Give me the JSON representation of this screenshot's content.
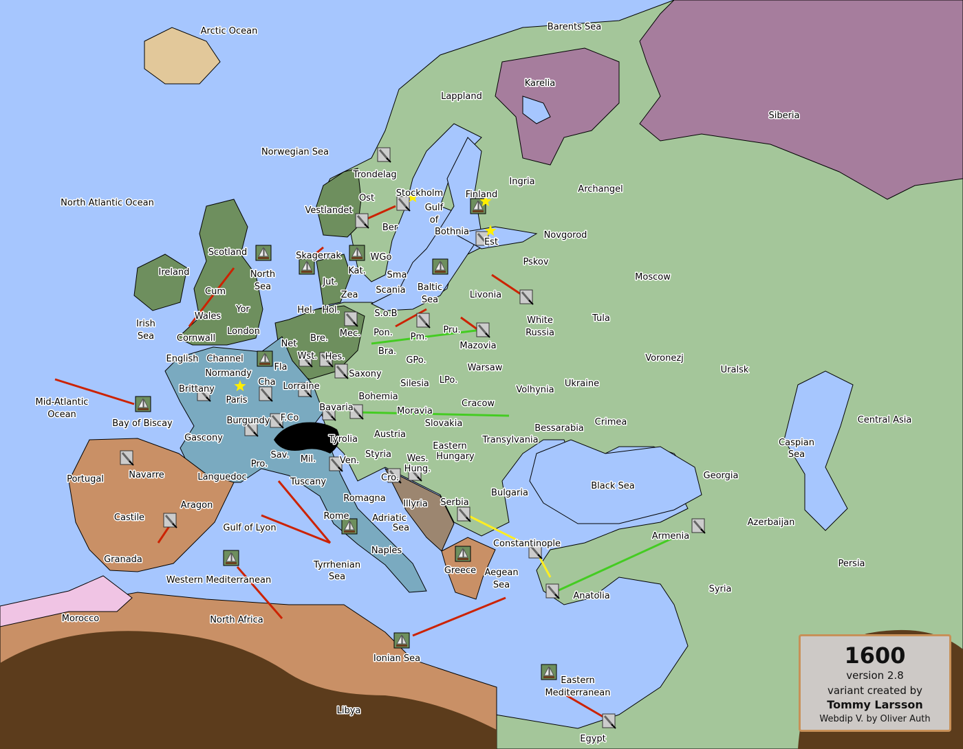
{
  "colors": {
    "sea": "#a6c6fe",
    "neutral_land": "#a4c69a",
    "dark_green": "#6e8f5e",
    "purple": "#a67d9d",
    "blue": "#7aaac0",
    "tan": "#c99066",
    "pink": "#f0c4e4",
    "desert": "#5c3c1c",
    "order_red": "#cc2200",
    "order_green": "#44cc22",
    "order_yellow": "#ffee22"
  },
  "regions": [
    "Arctic Ocean",
    "Barents Sea",
    "Karelia",
    "Siberia",
    "Lappland",
    "Norwegian Sea",
    "North Atlantic Ocean",
    "Trondelag",
    "Ost",
    "Stockholm",
    "Finland",
    "Ingria",
    "Archangel",
    "Vestlandet",
    "Gulf",
    "of",
    "Bothnia",
    "Ber",
    "Est",
    "Novgorod",
    "Scotland",
    "Skagerrak",
    "WGo",
    "North",
    "Sea",
    "Ireland",
    "Kat.",
    "Sma",
    "Pskov",
    "Moscow",
    "Cum",
    "Yor",
    "Jut.",
    "Zea",
    "Scania",
    "Baltic",
    "Sea",
    "Livonia",
    "Irish",
    "Sea",
    "Wales",
    "Hel.",
    "Hol.",
    "S.o.B",
    "White",
    "Russia",
    "Tula",
    "Cornwall",
    "London",
    "Mec.",
    "Pon.",
    "Pru.",
    "Pm.",
    "Mazovia",
    "Bre.",
    "Net",
    "English",
    "Channel",
    "Fla",
    "Wst.",
    "Hes.",
    "Bra.",
    "GPo.",
    "Warsaw",
    "Voronezj",
    "Uralsk",
    "Normandy",
    "Saxony",
    "Silesia",
    "LPo.",
    "Volhynia",
    "Ukraine",
    "Cha",
    "Lorraine",
    "Brittany",
    "Paris",
    "Bohemia",
    "Cracow",
    "Mid-Atlantic",
    "Ocean",
    "Moravia",
    "Bavaria",
    "Bay of Biscay",
    "Burgundy",
    "F.Co",
    "Slovakia",
    "Crimea",
    "Bessarabia",
    "Central Asia",
    "Gascony",
    "Tyrolia",
    "Austria",
    "Transylvania",
    "Eastern",
    "Hungary",
    "Caspian",
    "Sea",
    "Navarre",
    "Sav.",
    "Mil.",
    "Styria",
    "Wes.",
    "Hung.",
    "Pro.",
    "Ven.",
    "Portugal",
    "Languedoc",
    "Tuscany",
    "Cro.",
    "Georgia",
    "Black Sea",
    "Bulgaria",
    "Romagna",
    "Illyria",
    "Serbia",
    "Aragon",
    "Rome",
    "Adriatic",
    "Sea",
    "Castile",
    "Gulf of Lyon",
    "Azerbaijan",
    "Armenia",
    "Constantinople",
    "Naples",
    "Granada",
    "Tyrrhenian",
    "Sea",
    "Greece",
    "Aegean",
    "Sea",
    "Persia",
    "Syria",
    "Anatolia",
    "Western Mediterranean",
    "Morocco",
    "North Africa",
    "Ionian Sea",
    "Eastern",
    "Mediterranean",
    "Libya",
    "Egypt"
  ],
  "infobox": {
    "year": "1600",
    "version": "version 2.8",
    "credit": "variant created by",
    "author": "Tommy Larsson",
    "webdip": "Webdip V. by Oliver Auth"
  }
}
